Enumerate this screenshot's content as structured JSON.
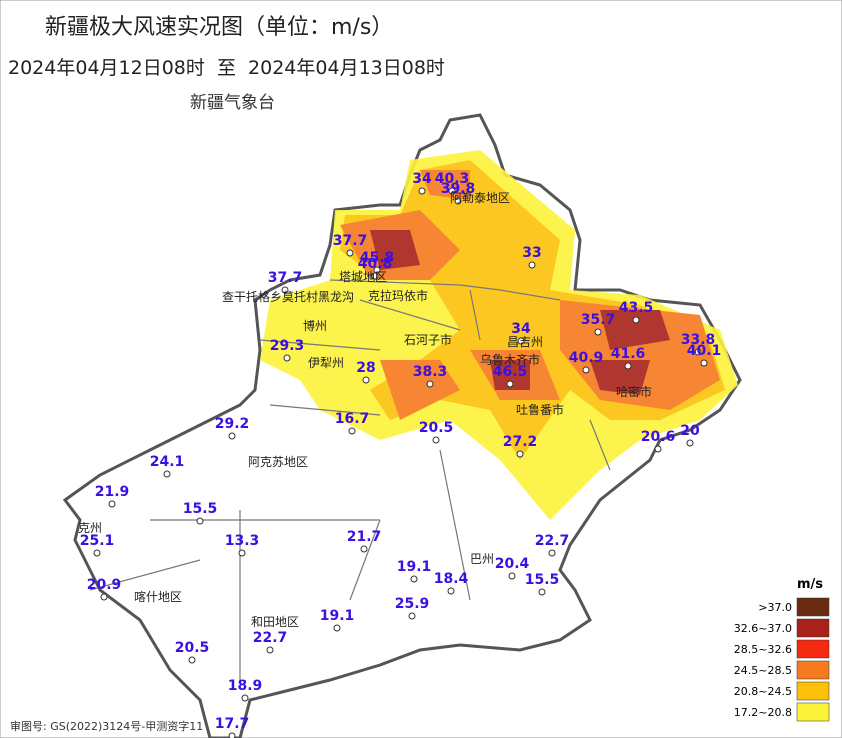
{
  "header": {
    "title": "新疆极大风速实况图（单位：m/s）",
    "period": "2024年04月12日08时  至  2024年04月13日08时",
    "issuer": "新疆气象台"
  },
  "stations": [
    40.3,
    34,
    39.8,
    37.7,
    45.8,
    40.8,
    33,
    37.7,
    29.3,
    28,
    16.7,
    38.3,
    46.5,
    34,
    35.7,
    43.5,
    33.8,
    40.1,
    40.9,
    41.6,
    20.6,
    20,
    27.2,
    20.5,
    29.2,
    24.1,
    21.9,
    15.5,
    25.1,
    13.3,
    21.7,
    20.9,
    19.1,
    18.4,
    20.4,
    22.7,
    15.5,
    25.9,
    19.1,
    22.7,
    20.5,
    18.9,
    17.7
  ],
  "regions": [
    "阿勒泰地区",
    "塔城地区",
    "克拉玛依市",
    "查干托格乡莫托村黑龙沟",
    "博州",
    "伊犁州",
    "石河子市",
    "昌吉州",
    "乌鲁木齐市",
    "吐鲁番市",
    "哈密市",
    "阿克苏地区",
    "克州",
    "喀什地区",
    "和田地区",
    "巴州"
  ],
  "legend": {
    "title": "m/s",
    "items": [
      {
        "label": ">37.0",
        "color": "#6b2a12"
      },
      {
        "label": "32.6~37.0",
        "color": "#a8221a"
      },
      {
        "label": "28.5~32.6",
        "color": "#f62a10"
      },
      {
        "label": "24.5~28.5",
        "color": "#f67a1e"
      },
      {
        "label": "20.8~24.5",
        "color": "#fcc20a"
      },
      {
        "label": "17.2~20.8",
        "color": "#fdf23a"
      }
    ]
  },
  "footer": "审图号: GS(2022)3124号-甲测资字11"
}
